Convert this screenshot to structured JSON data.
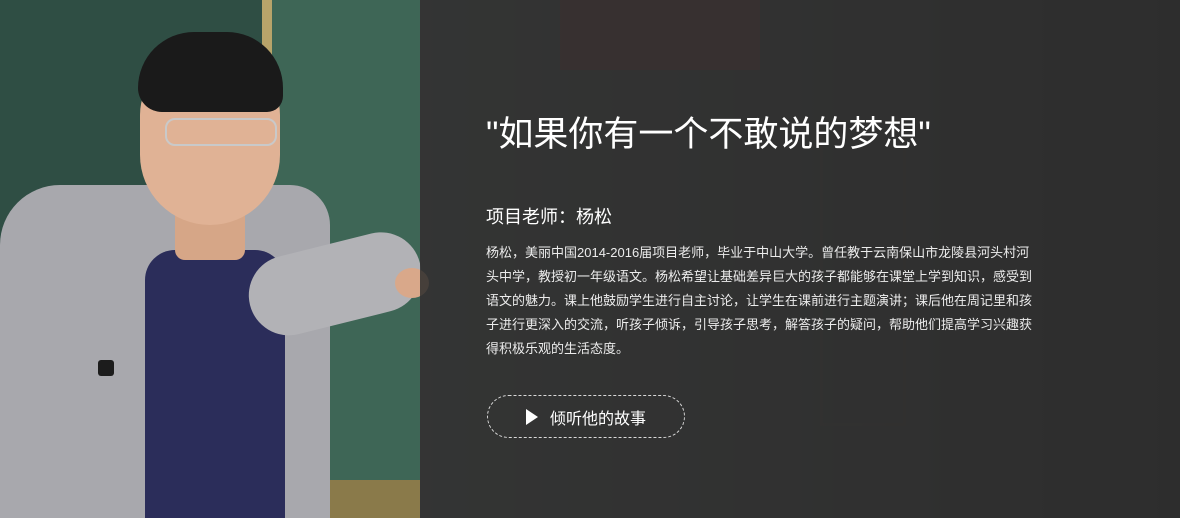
{
  "hero": {
    "title": "\"如果你有一个不敢说的梦想\"",
    "teacher_line": "项目老师：杨松",
    "description": "杨松，美丽中国2014-2016届项目老师，毕业于中山大学。曾任教于云南保山市龙陵县河头村河头中学，教授初一年级语文。杨松希望让基础差异巨大的孩子都能够在课堂上学到知识，感受到语文的魅力。课上他鼓励学生进行自主讨论，让学生在课前进行主题演讲；课后他在周记里和孩子进行更深入的交流，听孩子倾诉，引导孩子思考，解答孩子的疑问，帮助他们提高学习兴趣获得积极乐观的生活态度。",
    "cta_label": "倾听他的故事",
    "cta_icon": "play-icon"
  },
  "colors": {
    "overlay": "#2d2d2d",
    "text": "#ffffff",
    "board": "#3e6656"
  }
}
